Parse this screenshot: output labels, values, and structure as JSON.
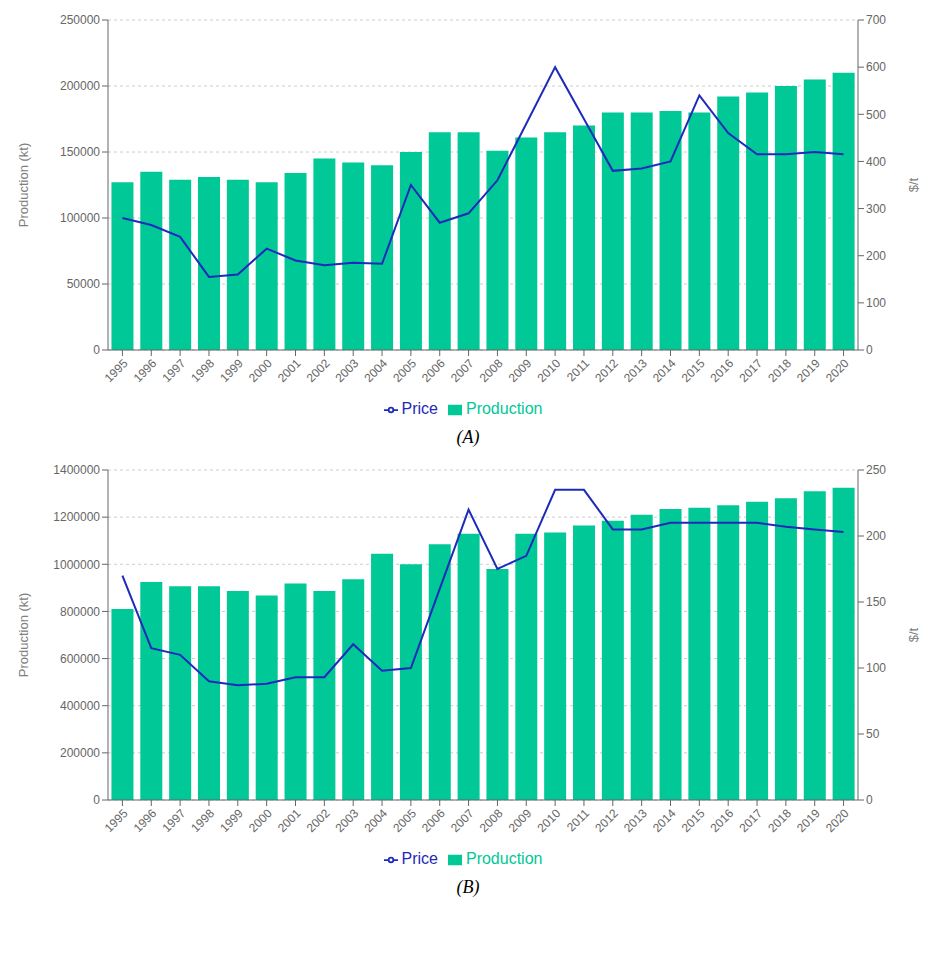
{
  "chart_data": [
    {
      "type": "bar",
      "title": "(A)",
      "categories": [
        "1995",
        "1996",
        "1997",
        "1998",
        "1999",
        "2000",
        "2001",
        "2002",
        "2003",
        "2004",
        "2005",
        "2006",
        "2007",
        "2008",
        "2009",
        "2010",
        "2011",
        "2012",
        "2013",
        "2014",
        "2015",
        "2016",
        "2017",
        "2018",
        "2019",
        "2020"
      ],
      "ylabel": "Production (kt)",
      "y2label": "$/t",
      "ylim": [
        0,
        250000
      ],
      "yticks": [
        0,
        50000,
        100000,
        150000,
        200000,
        250000
      ],
      "y2lim": [
        0,
        700
      ],
      "y2ticks": [
        0,
        100,
        200,
        300,
        400,
        500,
        600,
        700
      ],
      "grid": true,
      "legend": "bottom",
      "series": [
        {
          "name": "Production",
          "type": "bar",
          "color": "#00C896",
          "values": [
            127000,
            135000,
            129000,
            131000,
            129000,
            127000,
            134000,
            145000,
            142000,
            140000,
            150000,
            165000,
            165000,
            151000,
            161000,
            165000,
            170000,
            180000,
            180000,
            181000,
            180000,
            192000,
            195000,
            200000,
            205000,
            210000
          ]
        },
        {
          "name": "Price",
          "type": "line",
          "axis": "y2",
          "color": "#1E2ABA",
          "values": [
            280,
            265,
            240,
            155,
            160,
            215,
            190,
            180,
            185,
            183,
            350,
            270,
            290,
            360,
            480,
            600,
            490,
            380,
            385,
            400,
            540,
            460,
            415,
            415,
            420,
            415
          ]
        }
      ]
    },
    {
      "type": "bar",
      "title": "(B)",
      "categories": [
        "1995",
        "1996",
        "1997",
        "1998",
        "1999",
        "2000",
        "2001",
        "2002",
        "2003",
        "2004",
        "2005",
        "2006",
        "2007",
        "2008",
        "2009",
        "2010",
        "2011",
        "2012",
        "2013",
        "2014",
        "2015",
        "2016",
        "2017",
        "2018",
        "2019",
        "2020"
      ],
      "ylabel": "Production (kt)",
      "y2label": "$/t",
      "ylim": [
        0,
        1400000
      ],
      "yticks": [
        0,
        200000,
        400000,
        600000,
        800000,
        1000000,
        1200000,
        1400000
      ],
      "y2lim": [
        0,
        250
      ],
      "y2ticks": [
        0,
        50,
        100,
        150,
        200,
        250
      ],
      "grid": true,
      "legend": "bottom",
      "series": [
        {
          "name": "Production",
          "type": "bar",
          "color": "#00C896",
          "values": [
            810000,
            925000,
            907000,
            907000,
            887000,
            868000,
            919000,
            887000,
            936000,
            1045000,
            1000000,
            1085000,
            1130000,
            980000,
            1130000,
            1135000,
            1165000,
            1185000,
            1210000,
            1235000,
            1240000,
            1250000,
            1265000,
            1280000,
            1310000,
            1325000
          ]
        },
        {
          "name": "Price",
          "type": "line",
          "axis": "y2",
          "color": "#1E2ABA",
          "values": [
            170,
            115,
            110,
            90,
            87,
            88,
            93,
            93,
            118,
            98,
            100,
            160,
            220,
            175,
            185,
            235,
            235,
            205,
            205,
            210,
            210,
            210,
            210,
            207,
            205,
            203
          ]
        }
      ]
    }
  ]
}
